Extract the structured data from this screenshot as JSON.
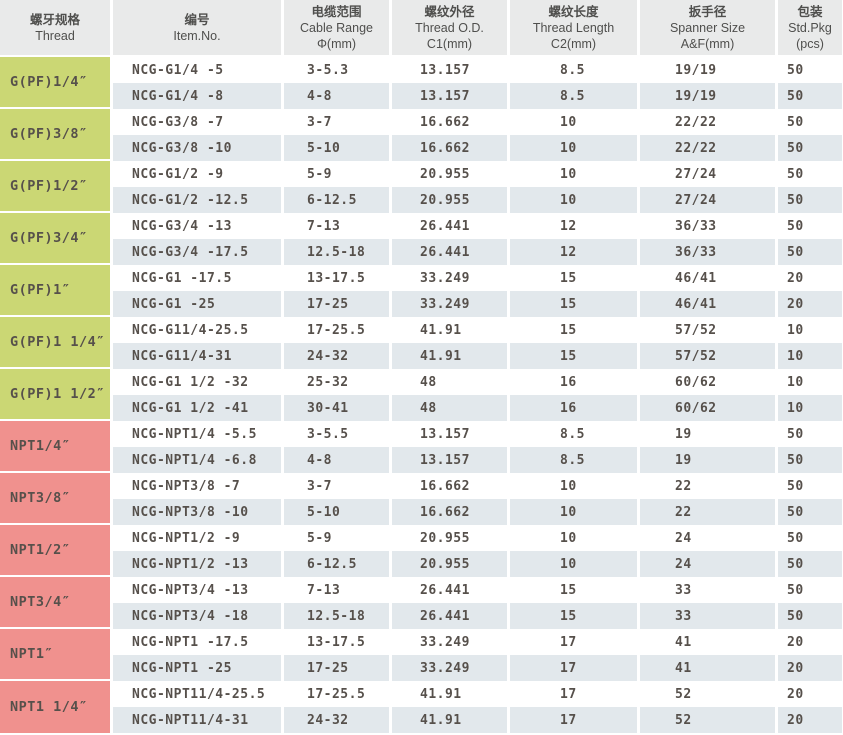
{
  "table": {
    "colors": {
      "g_thread": "#cbd774",
      "npt_thread": "#f0918e",
      "row_alt": "#e2e8ec",
      "header_bg": "#e9eaea",
      "text": "#56504b"
    },
    "headers": [
      {
        "zh": "螺牙规格",
        "en": "Thread",
        "sub": ""
      },
      {
        "zh": "编号",
        "en": "Item.No.",
        "sub": ""
      },
      {
        "zh": "电缆范围",
        "en": "Cable Range",
        "sub": "Φ(mm)"
      },
      {
        "zh": "螺纹外径",
        "en": "Thread O.D.",
        "sub": "C1(mm)"
      },
      {
        "zh": "螺纹长度",
        "en": "Thread Length",
        "sub": "C2(mm)"
      },
      {
        "zh": "扳手径",
        "en": "Spanner Size",
        "sub": "A&F(mm)"
      },
      {
        "zh": "包装",
        "en": "Std.Pkg",
        "sub": "(pcs)"
      }
    ],
    "groups": [
      {
        "thread": "G(PF)1/4″",
        "type": "G",
        "rows": [
          {
            "item_no": "NCG-G1/4 -5",
            "cable_range": "3-5.3",
            "thread_od": "13.157",
            "thread_length": "8.5",
            "spanner": "19/19",
            "pkg": "50"
          },
          {
            "item_no": "NCG-G1/4 -8",
            "cable_range": "4-8",
            "thread_od": "13.157",
            "thread_length": "8.5",
            "spanner": "19/19",
            "pkg": "50"
          }
        ]
      },
      {
        "thread": "G(PF)3/8″",
        "type": "G",
        "rows": [
          {
            "item_no": "NCG-G3/8 -7",
            "cable_range": "3-7",
            "thread_od": "16.662",
            "thread_length": "10",
            "spanner": "22/22",
            "pkg": "50"
          },
          {
            "item_no": "NCG-G3/8 -10",
            "cable_range": "5-10",
            "thread_od": "16.662",
            "thread_length": "10",
            "spanner": "22/22",
            "pkg": "50"
          }
        ]
      },
      {
        "thread": "G(PF)1/2″",
        "type": "G",
        "rows": [
          {
            "item_no": "NCG-G1/2 -9",
            "cable_range": "5-9",
            "thread_od": "20.955",
            "thread_length": "10",
            "spanner": "27/24",
            "pkg": "50"
          },
          {
            "item_no": "NCG-G1/2 -12.5",
            "cable_range": "6-12.5",
            "thread_od": "20.955",
            "thread_length": "10",
            "spanner": "27/24",
            "pkg": "50"
          }
        ]
      },
      {
        "thread": "G(PF)3/4″",
        "type": "G",
        "rows": [
          {
            "item_no": "NCG-G3/4 -13",
            "cable_range": "7-13",
            "thread_od": "26.441",
            "thread_length": "12",
            "spanner": "36/33",
            "pkg": "50"
          },
          {
            "item_no": "NCG-G3/4 -17.5",
            "cable_range": "12.5-18",
            "thread_od": "26.441",
            "thread_length": "12",
            "spanner": "36/33",
            "pkg": "50"
          }
        ]
      },
      {
        "thread": "G(PF)1″",
        "type": "G",
        "rows": [
          {
            "item_no": "NCG-G1 -17.5",
            "cable_range": "13-17.5",
            "thread_od": "33.249",
            "thread_length": "15",
            "spanner": "46/41",
            "pkg": "20"
          },
          {
            "item_no": "NCG-G1 -25",
            "cable_range": "17-25",
            "thread_od": "33.249",
            "thread_length": "15",
            "spanner": "46/41",
            "pkg": "20"
          }
        ]
      },
      {
        "thread": "G(PF)1 1/4″",
        "type": "G",
        "rows": [
          {
            "item_no": "NCG-G11/4-25.5",
            "cable_range": "17-25.5",
            "thread_od": "41.91",
            "thread_length": "15",
            "spanner": "57/52",
            "pkg": "10"
          },
          {
            "item_no": "NCG-G11/4-31",
            "cable_range": "24-32",
            "thread_od": "41.91",
            "thread_length": "15",
            "spanner": "57/52",
            "pkg": "10"
          }
        ]
      },
      {
        "thread": "G(PF)1 1/2″",
        "type": "G",
        "rows": [
          {
            "item_no": "NCG-G1 1/2 -32",
            "cable_range": "25-32",
            "thread_od": "48",
            "thread_length": "16",
            "spanner": "60/62",
            "pkg": "10"
          },
          {
            "item_no": "NCG-G1 1/2 -41",
            "cable_range": "30-41",
            "thread_od": "48",
            "thread_length": "16",
            "spanner": "60/62",
            "pkg": "10"
          }
        ]
      },
      {
        "thread": "NPT1/4″",
        "type": "NPT",
        "rows": [
          {
            "item_no": "NCG-NPT1/4 -5.5",
            "cable_range": "3-5.5",
            "thread_od": "13.157",
            "thread_length": "8.5",
            "spanner": "19",
            "pkg": "50"
          },
          {
            "item_no": "NCG-NPT1/4 -6.8",
            "cable_range": "4-8",
            "thread_od": "13.157",
            "thread_length": "8.5",
            "spanner": "19",
            "pkg": "50"
          }
        ]
      },
      {
        "thread": "NPT3/8″",
        "type": "NPT",
        "rows": [
          {
            "item_no": "NCG-NPT3/8 -7",
            "cable_range": "3-7",
            "thread_od": "16.662",
            "thread_length": "10",
            "spanner": "22",
            "pkg": "50"
          },
          {
            "item_no": "NCG-NPT3/8 -10",
            "cable_range": "5-10",
            "thread_od": "16.662",
            "thread_length": "10",
            "spanner": "22",
            "pkg": "50"
          }
        ]
      },
      {
        "thread": "NPT1/2″",
        "type": "NPT",
        "rows": [
          {
            "item_no": "NCG-NPT1/2 -9",
            "cable_range": "5-9",
            "thread_od": "20.955",
            "thread_length": "10",
            "spanner": "24",
            "pkg": "50"
          },
          {
            "item_no": "NCG-NPT1/2 -13",
            "cable_range": "6-12.5",
            "thread_od": "20.955",
            "thread_length": "10",
            "spanner": "24",
            "pkg": "50"
          }
        ]
      },
      {
        "thread": "NPT3/4″",
        "type": "NPT",
        "rows": [
          {
            "item_no": "NCG-NPT3/4 -13",
            "cable_range": "7-13",
            "thread_od": "26.441",
            "thread_length": "15",
            "spanner": "33",
            "pkg": "50"
          },
          {
            "item_no": "NCG-NPT3/4 -18",
            "cable_range": "12.5-18",
            "thread_od": "26.441",
            "thread_length": "15",
            "spanner": "33",
            "pkg": "50"
          }
        ]
      },
      {
        "thread": "NPT1″",
        "type": "NPT",
        "rows": [
          {
            "item_no": "NCG-NPT1 -17.5",
            "cable_range": "13-17.5",
            "thread_od": "33.249",
            "thread_length": "17",
            "spanner": "41",
            "pkg": "20"
          },
          {
            "item_no": "NCG-NPT1 -25",
            "cable_range": "17-25",
            "thread_od": "33.249",
            "thread_length": "17",
            "spanner": "41",
            "pkg": "20"
          }
        ]
      },
      {
        "thread": "NPT1 1/4″",
        "type": "NPT",
        "rows": [
          {
            "item_no": "NCG-NPT11/4-25.5",
            "cable_range": "17-25.5",
            "thread_od": "41.91",
            "thread_length": "17",
            "spanner": "52",
            "pkg": "20"
          },
          {
            "item_no": "NCG-NPT11/4-31",
            "cable_range": "24-32",
            "thread_od": "41.91",
            "thread_length": "17",
            "spanner": "52",
            "pkg": "20"
          }
        ]
      }
    ]
  }
}
